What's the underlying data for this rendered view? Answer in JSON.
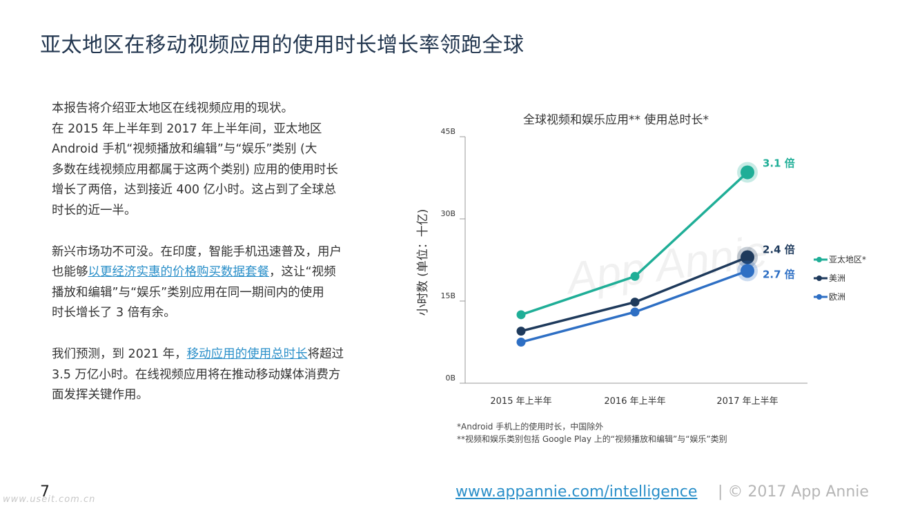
{
  "page": {
    "title": "亚太地区在移动视频应用的使用时长增长率领跑全球",
    "page_number": "7"
  },
  "body": {
    "p1_lines": [
      "本报告将介绍亚太地区在线视频应用的现状。",
      "在 2015 年上半年到 2017 年上半年间，亚太地区",
      "Android 手机“视频播放和编辑”与“娱乐”类别 (大",
      "多数在线视频应用都属于这两个类别) 应用的使用时长",
      "增长了两倍，达到接近 400 亿小时。这占到了全球总",
      "时长的近一半。"
    ],
    "p2": {
      "l1": "新兴市场功不可没。在印度，智能手机迅速普及，用户",
      "l2_pre": "也能够",
      "l2_link": "以更经济实惠的价格购买数据套餐",
      "l2_post": "，这让“视频",
      "l3": "播放和编辑”与“娱乐”类别应用在同一期间内的使用",
      "l4": "时长增长了 3 倍有余。"
    },
    "p3": {
      "l1_pre": "我们预测，到 2021 年，",
      "l1_link": "移动应用的使用总时长",
      "l1_post": "将超过",
      "l2": "3.5 万亿小时。在线视频应用将在推动移动媒体消费方",
      "l3": "面发挥关键作用。"
    }
  },
  "footnotes": [
    "*Android 手机上的使用时长，中国除外",
    "**视频和娱乐类别包括 Google Play 上的“视频播放和编辑”与“娱乐”类别"
  ],
  "footer": {
    "link": "www.appannie.com/intelligence",
    "copyright": "|  © 2017 App Annie",
    "watermark": "www.useit.com.cn"
  },
  "chart_data": {
    "type": "line",
    "title": "全球视频和娱乐应用** 使用总时长*",
    "ylabel": "小时数 (单位：十亿)",
    "watermark": "App Annie",
    "categories": [
      "2015 年上半年",
      "2016 年上半年",
      "2017 年上半年"
    ],
    "yticks": [
      "0B",
      "15B",
      "30B",
      "45B"
    ],
    "ylim": [
      0,
      45
    ],
    "series": [
      {
        "name": "亚太地区*",
        "values": [
          12.5,
          19.5,
          38.5
        ],
        "color": "#1fae97",
        "end_label": "3.1 倍"
      },
      {
        "name": "美洲",
        "values": [
          9.5,
          14.8,
          23.0
        ],
        "color": "#1e3a5c",
        "end_label": "2.4 倍"
      },
      {
        "name": "欧洲",
        "values": [
          7.5,
          13.0,
          20.5
        ],
        "color": "#2e6fc4",
        "end_label": "2.7 倍"
      }
    ],
    "grid": false,
    "legend": "right"
  }
}
